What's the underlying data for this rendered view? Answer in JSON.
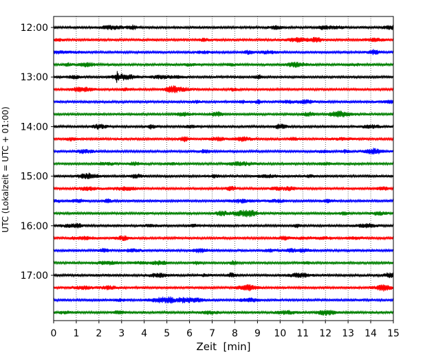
{
  "chart_data": {
    "type": "line",
    "title": "",
    "xlabel": "Zeit  [min]",
    "ylabel": "UTC (Lokalzeit = UTC + 01:00)",
    "xlim": [
      0,
      15
    ],
    "x_ticks": [
      "0",
      "1",
      "2",
      "3",
      "4",
      "5",
      "6",
      "7",
      "8",
      "9",
      "10",
      "11",
      "12",
      "13",
      "14",
      "15"
    ],
    "y_ticks": [
      "12:00",
      "13:00",
      "14:00",
      "15:00",
      "16:00",
      "17:00"
    ],
    "grid": "vertical dotted lines at each minute",
    "colors": [
      "#000000",
      "#ff0000",
      "#0000ff",
      "#008000"
    ],
    "traces_start": [
      "12:00",
      "12:15",
      "12:30",
      "12:45",
      "13:00",
      "13:15",
      "13:30",
      "13:45",
      "14:00",
      "14:15",
      "14:30",
      "14:45",
      "15:00",
      "15:15",
      "15:30",
      "15:45",
      "16:00",
      "16:15",
      "16:30",
      "16:45",
      "17:00",
      "17:15",
      "17:30",
      "17:45"
    ],
    "events": [
      {
        "trace": "13:00",
        "minute": 2.8
      }
    ]
  }
}
